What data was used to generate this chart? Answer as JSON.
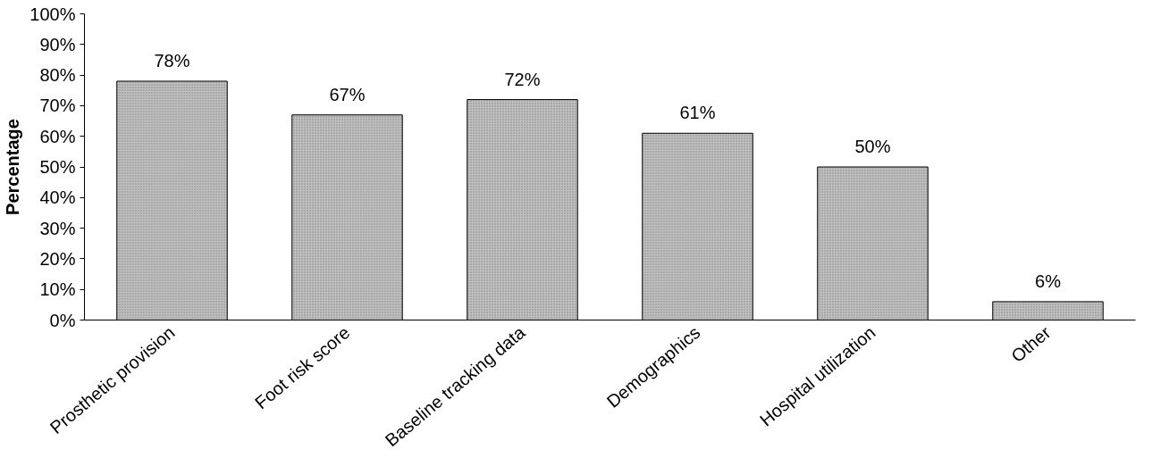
{
  "chart_data": {
    "type": "bar",
    "ylabel": "Percentage",
    "categories": [
      "Prosthetic provision",
      "Foot risk score",
      "Baseline tracking data",
      "Demographics",
      "Hospital utilization",
      "Other"
    ],
    "values": [
      78,
      67,
      72,
      61,
      50,
      6
    ],
    "color": "#c0c0c0",
    "value_labels": [
      "78%",
      "67%",
      "72%",
      "61%",
      "50%",
      "6%"
    ],
    "ylim": [
      0,
      100
    ],
    "yticks": [
      {
        "value": 0,
        "label": "0%"
      },
      {
        "value": 10,
        "label": "10%"
      },
      {
        "value": 20,
        "label": "20%"
      },
      {
        "value": 30,
        "label": "30%"
      },
      {
        "value": 40,
        "label": "40%"
      },
      {
        "value": 50,
        "label": "50%"
      },
      {
        "value": 60,
        "label": "60%"
      },
      {
        "value": 70,
        "label": "70%"
      },
      {
        "value": 80,
        "label": "80%"
      },
      {
        "value": 90,
        "label": "90%"
      },
      {
        "value": 100,
        "label": "100%"
      }
    ],
    "grid": false
  }
}
